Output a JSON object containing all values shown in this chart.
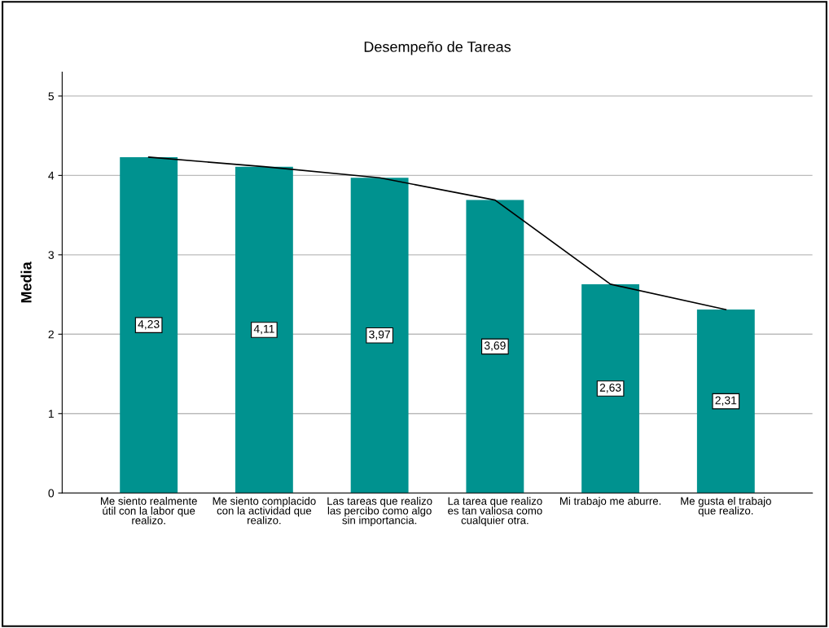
{
  "chart_data": {
    "type": "bar",
    "title": "Desempeño de Tareas",
    "ylabel": "Media",
    "categories": [
      "Me siento realmente\nútil con la labor que\nrealizo.",
      "Me siento complacido\ncon la actividad que\nrealizo.",
      "Las tareas que realizo\nlas percibo como algo\nsin importancia.",
      "La tarea que realizo\nes tan valiosa como\ncualquier otra.",
      "Mi trabajo me aburre.",
      "Me gusta el trabajo\nque realizo."
    ],
    "series": [
      {
        "color": "#00928f",
        "values": [
          4.23,
          4.11,
          3.97,
          3.69,
          2.63,
          2.31
        ],
        "value_labels": [
          "4,23",
          "4,11",
          "3,97",
          "3,69",
          "2,63",
          "2,31"
        ]
      },
      {
        "type": "line",
        "color": "#000000",
        "values": [
          4.23,
          4.11,
          3.97,
          3.69,
          2.63,
          2.31
        ]
      }
    ],
    "ylim": [
      0,
      5.3
    ],
    "yticks": [
      0,
      1,
      2,
      3,
      4,
      5
    ],
    "grid": "y",
    "marker": "none",
    "line_style": "solid"
  }
}
